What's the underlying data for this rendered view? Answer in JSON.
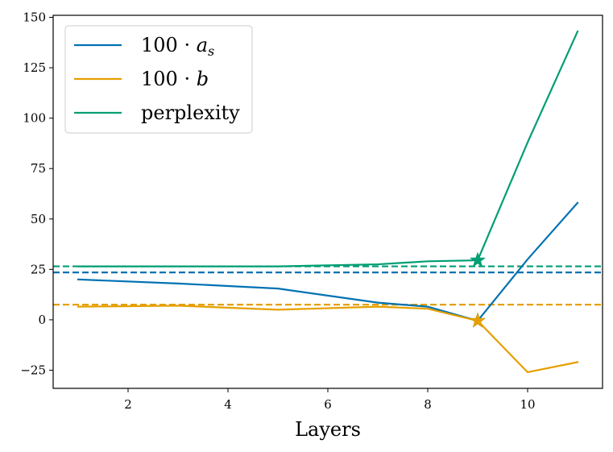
{
  "chart_data": {
    "type": "line",
    "title": "",
    "xlabel": "Layers",
    "ylabel": "",
    "xlim": [
      0.5,
      11.5
    ],
    "ylim": [
      -34,
      151
    ],
    "xticks": [
      2,
      4,
      6,
      8,
      10
    ],
    "xtick_labels": [
      "2",
      "4",
      "6",
      "8",
      "10"
    ],
    "yticks": [
      -25,
      0,
      25,
      50,
      75,
      100,
      125,
      150
    ],
    "ytick_labels": [
      "−25",
      "0",
      "25",
      "50",
      "75",
      "100",
      "125",
      "150"
    ],
    "grid": false,
    "legend_position": "top-left",
    "series": [
      {
        "name": "100 · a_s",
        "legend_label_main": "100 · ",
        "legend_label_var": "a",
        "legend_label_sub": "s",
        "color": "#0072b2",
        "x": [
          1,
          3,
          5,
          7,
          8,
          9,
          10,
          11
        ],
        "y": [
          20,
          18,
          15.5,
          8.5,
          6.5,
          -0.5,
          30,
          58
        ],
        "baseline": 23.5,
        "star": {
          "x": 9,
          "y": -0.5
        }
      },
      {
        "name": "100 · b",
        "legend_label_main": "100 · ",
        "legend_label_var": "b",
        "legend_label_sub": "",
        "color": "#e69f00",
        "x": [
          1,
          3,
          5,
          7,
          8,
          9,
          10,
          11
        ],
        "y": [
          6.5,
          7,
          5,
          6.5,
          5.5,
          -0.5,
          -26,
          -21
        ],
        "baseline": 7.5,
        "star": {
          "x": 9,
          "y": -0.5
        }
      },
      {
        "name": "perplexity",
        "legend_label_main": "perplexity",
        "legend_label_var": "",
        "legend_label_sub": "",
        "color": "#009e73",
        "x": [
          1,
          3,
          5,
          7,
          8,
          9,
          10,
          11
        ],
        "y": [
          26.5,
          26.5,
          26.5,
          27.5,
          29,
          29.5,
          88,
          143
        ],
        "baseline": 26.5,
        "star": {
          "x": 9,
          "y": 29.5
        }
      }
    ]
  }
}
